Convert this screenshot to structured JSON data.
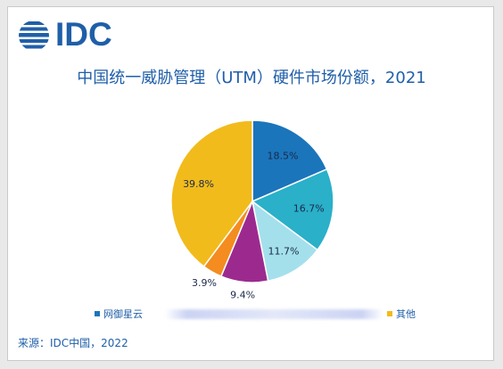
{
  "logo": {
    "text": "IDC"
  },
  "chart_data": {
    "type": "pie",
    "title": "中国统一威胁管理（UTM）硬件市场份额，2021",
    "slices": [
      {
        "label": "网御星云",
        "value": 18.5,
        "display": "18.5%",
        "color": "#1b75bb"
      },
      {
        "label": "",
        "value": 16.7,
        "display": "16.7%",
        "color": "#2ab0c9"
      },
      {
        "label": "",
        "value": 11.7,
        "display": "11.7%",
        "color": "#a4e0ec"
      },
      {
        "label": "",
        "value": 9.4,
        "display": "9.4%",
        "color": "#9c2a8e"
      },
      {
        "label": "",
        "value": 3.9,
        "display": "3.9%",
        "color": "#f48c1f"
      },
      {
        "label": "其他",
        "value": 39.8,
        "display": "39.8%",
        "color": "#f2bb1c"
      }
    ],
    "legend": [
      {
        "label": "网御星云",
        "color": "#1b75bb"
      },
      {
        "label": "其他",
        "color": "#f2bb1c"
      }
    ]
  },
  "source": "来源：IDC中国，2022"
}
